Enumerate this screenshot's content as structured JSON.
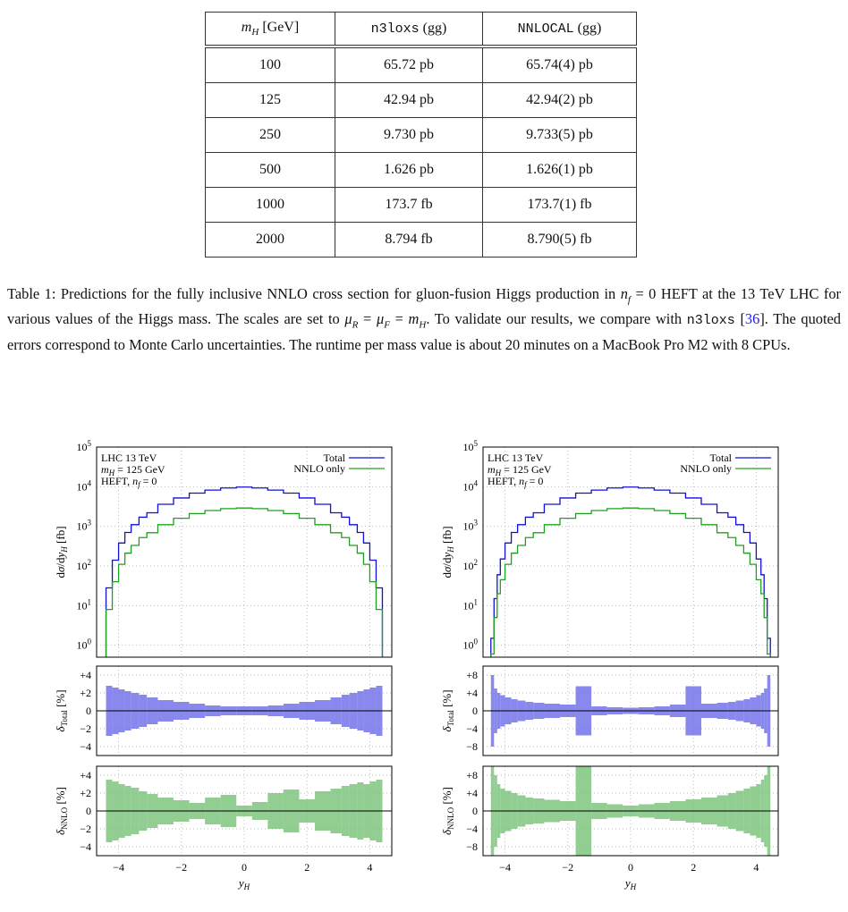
{
  "table": {
    "headers": [
      "mH [GeV]",
      "n3loxs (gg)",
      "NNLOCAL (gg)"
    ],
    "rows": [
      [
        "100",
        "65.72 pb",
        "65.74(4) pb"
      ],
      [
        "125",
        "42.94 pb",
        "42.94(2) pb"
      ],
      [
        "250",
        "9.730 pb",
        "9.733(5) pb"
      ],
      [
        "500",
        "1.626 pb",
        "1.626(1) pb"
      ],
      [
        "1000",
        "173.7 fb",
        "173.7(1) fb"
      ],
      [
        "2000",
        "8.794 fb",
        "8.790(5) fb"
      ]
    ]
  },
  "caption": {
    "t1": "Table 1: Predictions for the fully inclusive NNLO cross section for gluon-fusion Higgs production in ",
    "t2": " = 0 HEFT at the 13 TeV LHC for various values of the Higgs mass. The scales are set to ",
    "t3": ". To validate our results, we compare with ",
    "code": "n3loxs",
    "cite_open": " [",
    "cite": "36",
    "t4": "]. The quoted errors correspond to Monte Carlo uncertainties. The runtime per mass value is about 20 minutes on a MacBook Pro M2 with 8 CPUs."
  },
  "plot_labels": {
    "info_line1": "LHC 13 TeV",
    "info_line2": "m",
    "info_line2_sub": "H",
    "info_line2_rest": " = 125 GeV",
    "info_line3": "HEFT, n",
    "info_line3_sub": "f",
    "info_line3_rest": " = 0",
    "legend_total": "Total",
    "legend_nnlo": "NNLO only",
    "ylabel_top": "dσ/dy",
    "ylabel_top_sub": "H",
    "ylabel_top_unit": " [fb]",
    "ylabel_mid": "δ",
    "ylabel_mid_sub": "Total",
    "ylabel_bot_sub": "NNLO",
    "ylabel_pct": " [%]",
    "xlabel": "y",
    "xlabel_sub": "H"
  },
  "chart_data": [
    {
      "type": "line",
      "title": "",
      "xlabel": "yH",
      "ylabel": "dσ/dyH [fb]",
      "yscale": "log",
      "xlim": [
        -4.7,
        4.7
      ],
      "ylim": [
        0.5,
        100000
      ],
      "x": [
        -4.3,
        -4.1,
        -3.9,
        -3.7,
        -3.5,
        -3.2,
        -3.0,
        -2.5,
        -2.0,
        -1.5,
        -1.0,
        -0.5,
        0,
        0.5,
        1.0,
        1.5,
        2.0,
        2.5,
        3.0,
        3.2,
        3.5,
        3.7,
        3.9,
        4.1,
        4.3
      ],
      "series": [
        {
          "name": "Total",
          "color": "#1010d8",
          "values": [
            28,
            140,
            380,
            700,
            1100,
            1700,
            2200,
            3600,
            5200,
            6900,
            8200,
            9300,
            9800,
            9300,
            8200,
            6900,
            5200,
            3600,
            2200,
            1700,
            1100,
            700,
            380,
            140,
            28
          ]
        },
        {
          "name": "NNLO only",
          "color": "#20a020",
          "values": [
            8,
            40,
            110,
            210,
            330,
            520,
            690,
            1100,
            1600,
            2100,
            2500,
            2800,
            2900,
            2800,
            2500,
            2100,
            1600,
            1100,
            690,
            520,
            330,
            210,
            110,
            40,
            8
          ]
        }
      ],
      "panels": [
        {
          "label": "δTotal [%]",
          "ylim": [
            -5,
            5
          ],
          "color": "#6b6be8",
          "errors": [
            2.8,
            2.6,
            2.4,
            2.2,
            2.0,
            1.8,
            1.5,
            1.2,
            1.0,
            0.8,
            0.6,
            0.5,
            0.5,
            0.5,
            0.6,
            0.8,
            1.0,
            1.2,
            1.5,
            1.8,
            2.0,
            2.2,
            2.4,
            2.6,
            2.8
          ]
        },
        {
          "label": "δNNLO [%]",
          "ylim": [
            -5,
            5
          ],
          "color": "#77c077",
          "errors": [
            3.5,
            3.3,
            3.0,
            2.8,
            2.6,
            2.2,
            1.9,
            1.5,
            1.2,
            0.9,
            1.5,
            1.8,
            0.6,
            1.0,
            2.0,
            2.4,
            1.3,
            2.2,
            2.5,
            2.8,
            3.0,
            3.2,
            3.0,
            3.3,
            3.5
          ]
        }
      ]
    },
    {
      "type": "line",
      "title": "",
      "xlabel": "yH",
      "ylabel": "dσ/dyH [fb]",
      "yscale": "log",
      "xlim": [
        -4.7,
        4.7
      ],
      "ylim": [
        0.5,
        100000
      ],
      "x": [
        -4.4,
        -4.3,
        -4.2,
        -4.1,
        -3.9,
        -3.7,
        -3.5,
        -3.2,
        -3.0,
        -2.5,
        -2.0,
        -1.5,
        -1.0,
        -0.5,
        0,
        0.5,
        1.0,
        1.5,
        2.0,
        2.5,
        3.0,
        3.2,
        3.5,
        3.7,
        3.9,
        4.1,
        4.2,
        4.3,
        4.4
      ],
      "series": [
        {
          "name": "Total",
          "color": "#1010d8",
          "values": [
            1.5,
            15,
            60,
            150,
            380,
            700,
            1100,
            1700,
            2200,
            3600,
            5200,
            6900,
            8200,
            9300,
            9800,
            9300,
            8200,
            6900,
            5200,
            3600,
            2200,
            1700,
            1100,
            700,
            380,
            150,
            60,
            15,
            1.5
          ]
        },
        {
          "name": "NNLO only",
          "color": "#20a020",
          "values": [
            0.6,
            5,
            20,
            45,
            110,
            210,
            330,
            520,
            690,
            1100,
            1600,
            2100,
            2500,
            2800,
            2900,
            2800,
            2500,
            2100,
            1600,
            1100,
            690,
            520,
            330,
            210,
            110,
            45,
            20,
            5,
            0.6
          ]
        }
      ],
      "panels": [
        {
          "label": "δTotal [%]",
          "ylim": [
            -10,
            10
          ],
          "color": "#6b6be8",
          "errors": [
            8,
            5,
            4,
            3.5,
            3.0,
            2.6,
            2.3,
            2.0,
            1.8,
            1.6,
            1.4,
            5.5,
            1.0,
            0.8,
            0.7,
            0.8,
            1.0,
            1.4,
            5.5,
            1.6,
            1.8,
            2.0,
            2.3,
            2.6,
            3.0,
            3.5,
            4,
            5,
            8
          ]
        },
        {
          "label": "δNNLO [%]",
          "ylim": [
            -10,
            10
          ],
          "color": "#77c077",
          "errors": [
            10,
            8,
            6,
            5,
            4.5,
            4,
            3.5,
            3,
            2.8,
            2.5,
            2.2,
            12,
            1.8,
            1.5,
            1.2,
            1.5,
            1.8,
            2.2,
            2.6,
            3,
            3.5,
            4,
            4.5,
            5,
            5.5,
            6,
            7,
            8,
            10
          ]
        }
      ]
    }
  ]
}
